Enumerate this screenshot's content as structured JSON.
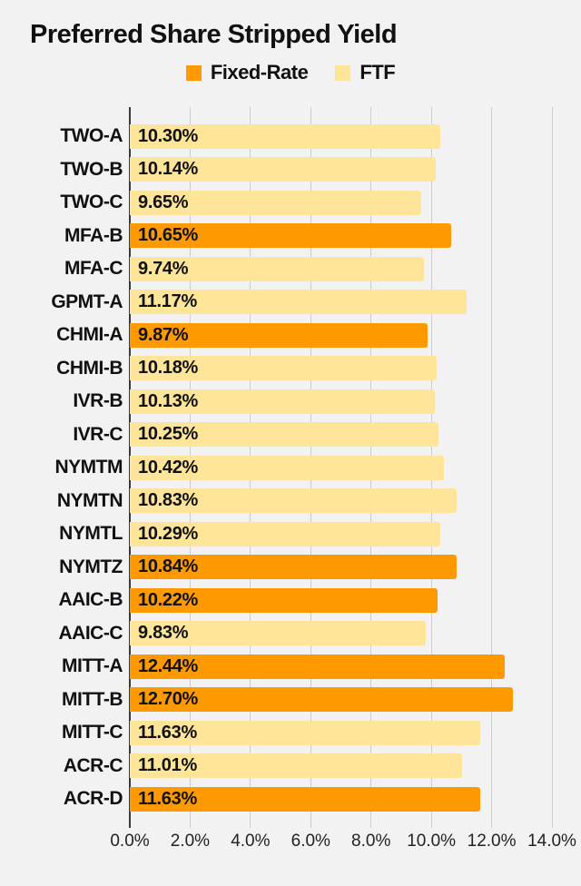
{
  "colors": {
    "background": "#f2f2f2",
    "fixed_rate": "#ff9900",
    "ftf": "#ffe599",
    "gridline": "#cccccc",
    "zero_axis": "#3a3a3a",
    "text": "#111111"
  },
  "chart_data": {
    "type": "bar",
    "orientation": "horizontal",
    "title": "Preferred Share Stripped Yield",
    "xlabel": "",
    "ylabel": "",
    "xlim": [
      0,
      14
    ],
    "grid": true,
    "legend_position": "top-center",
    "legend": [
      {
        "name": "Fixed-Rate",
        "color": "#ff9900"
      },
      {
        "name": "FTF",
        "color": "#ffe599"
      }
    ],
    "x_ticks": [
      {
        "value": 0,
        "label": "0.0%"
      },
      {
        "value": 2,
        "label": "2.0%"
      },
      {
        "value": 4,
        "label": "4.0%"
      },
      {
        "value": 6,
        "label": "6.0%"
      },
      {
        "value": 8,
        "label": "8.0%"
      },
      {
        "value": 10,
        "label": "10.0%"
      },
      {
        "value": 12,
        "label": "12.0%"
      },
      {
        "value": 14,
        "label": "14.0%"
      }
    ],
    "rows": [
      {
        "label": "TWO-A",
        "value": 10.3,
        "display": "10.30%",
        "series": "FTF"
      },
      {
        "label": "TWO-B",
        "value": 10.14,
        "display": "10.14%",
        "series": "FTF"
      },
      {
        "label": "TWO-C",
        "value": 9.65,
        "display": "9.65%",
        "series": "FTF"
      },
      {
        "label": "MFA-B",
        "value": 10.65,
        "display": "10.65%",
        "series": "Fixed-Rate"
      },
      {
        "label": "MFA-C",
        "value": 9.74,
        "display": "9.74%",
        "series": "FTF"
      },
      {
        "label": "GPMT-A",
        "value": 11.17,
        "display": "11.17%",
        "series": "FTF"
      },
      {
        "label": "CHMI-A",
        "value": 9.87,
        "display": "9.87%",
        "series": "Fixed-Rate"
      },
      {
        "label": "CHMI-B",
        "value": 10.18,
        "display": "10.18%",
        "series": "FTF"
      },
      {
        "label": "IVR-B",
        "value": 10.13,
        "display": "10.13%",
        "series": "FTF"
      },
      {
        "label": "IVR-C",
        "value": 10.25,
        "display": "10.25%",
        "series": "FTF"
      },
      {
        "label": "NYMTM",
        "value": 10.42,
        "display": "10.42%",
        "series": "FTF"
      },
      {
        "label": "NYMTN",
        "value": 10.83,
        "display": "10.83%",
        "series": "FTF"
      },
      {
        "label": "NYMTL",
        "value": 10.29,
        "display": "10.29%",
        "series": "FTF"
      },
      {
        "label": "NYMTZ",
        "value": 10.84,
        "display": "10.84%",
        "series": "Fixed-Rate"
      },
      {
        "label": "AAIC-B",
        "value": 10.22,
        "display": "10.22%",
        "series": "Fixed-Rate"
      },
      {
        "label": "AAIC-C",
        "value": 9.83,
        "display": "9.83%",
        "series": "FTF"
      },
      {
        "label": "MITT-A",
        "value": 12.44,
        "display": "12.44%",
        "series": "Fixed-Rate"
      },
      {
        "label": "MITT-B",
        "value": 12.7,
        "display": "12.70%",
        "series": "Fixed-Rate"
      },
      {
        "label": "MITT-C",
        "value": 11.63,
        "display": "11.63%",
        "series": "FTF"
      },
      {
        "label": "ACR-C",
        "value": 11.01,
        "display": "11.01%",
        "series": "FTF"
      },
      {
        "label": "ACR-D",
        "value": 11.63,
        "display": "11.63%",
        "series": "Fixed-Rate"
      }
    ]
  }
}
